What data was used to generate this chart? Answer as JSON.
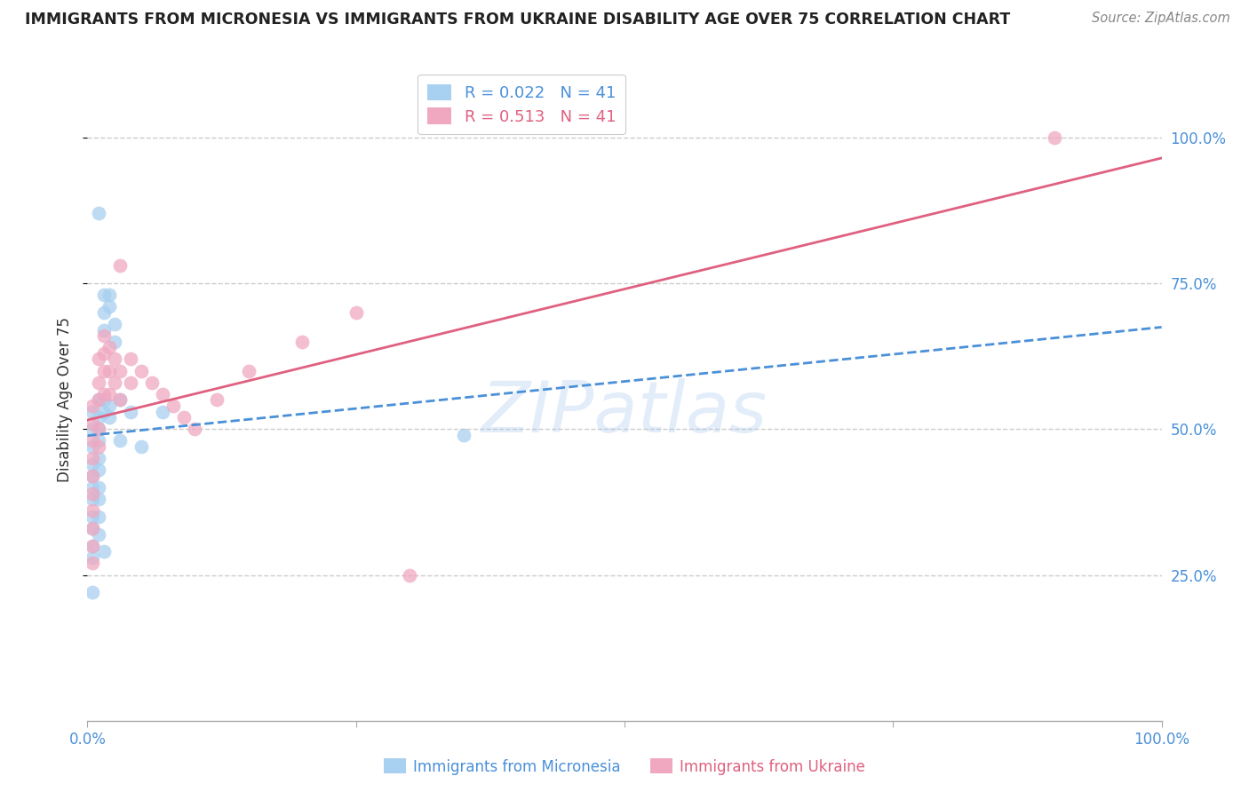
{
  "title": "IMMIGRANTS FROM MICRONESIA VS IMMIGRANTS FROM UKRAINE DISABILITY AGE OVER 75 CORRELATION CHART",
  "source": "Source: ZipAtlas.com",
  "ylabel": "Disability Age Over 75",
  "ylabel_right_labels": [
    "100.0%",
    "75.0%",
    "50.0%",
    "25.0%"
  ],
  "ylabel_right_values": [
    1.0,
    0.75,
    0.5,
    0.25
  ],
  "legend_top": [
    {
      "R": 0.022,
      "N": 41,
      "dot_color": "#a8d0f0"
    },
    {
      "R": 0.513,
      "N": 41,
      "dot_color": "#f0a8c0"
    }
  ],
  "legend_bottom": [
    {
      "label": "Immigrants from Micronesia",
      "dot_color": "#a8d0f0"
    },
    {
      "label": "Immigrants from Ukraine",
      "dot_color": "#f0a8c0"
    }
  ],
  "micronesia_x": [
    0.005,
    0.005,
    0.005,
    0.005,
    0.005,
    0.005,
    0.005,
    0.005,
    0.005,
    0.005,
    0.01,
    0.01,
    0.01,
    0.01,
    0.01,
    0.01,
    0.01,
    0.01,
    0.01,
    0.015,
    0.015,
    0.015,
    0.015,
    0.015,
    0.02,
    0.02,
    0.02,
    0.02,
    0.025,
    0.025,
    0.03,
    0.03,
    0.04,
    0.05,
    0.07,
    0.35,
    0.005,
    0.005,
    0.01,
    0.01,
    0.015
  ],
  "micronesia_y": [
    0.53,
    0.5,
    0.47,
    0.44,
    0.42,
    0.4,
    0.38,
    0.35,
    0.33,
    0.3,
    0.87,
    0.55,
    0.52,
    0.5,
    0.48,
    0.45,
    0.43,
    0.4,
    0.38,
    0.73,
    0.7,
    0.67,
    0.55,
    0.53,
    0.73,
    0.71,
    0.54,
    0.52,
    0.68,
    0.65,
    0.55,
    0.48,
    0.53,
    0.47,
    0.53,
    0.49,
    0.28,
    0.22,
    0.35,
    0.32,
    0.29
  ],
  "ukraine_x": [
    0.005,
    0.005,
    0.005,
    0.005,
    0.005,
    0.005,
    0.005,
    0.005,
    0.005,
    0.005,
    0.01,
    0.01,
    0.01,
    0.01,
    0.01,
    0.015,
    0.015,
    0.015,
    0.015,
    0.02,
    0.02,
    0.02,
    0.025,
    0.025,
    0.03,
    0.03,
    0.03,
    0.04,
    0.04,
    0.05,
    0.06,
    0.07,
    0.08,
    0.09,
    0.1,
    0.12,
    0.15,
    0.2,
    0.25,
    0.3,
    0.9
  ],
  "ukraine_y": [
    0.54,
    0.51,
    0.48,
    0.45,
    0.42,
    0.39,
    0.36,
    0.33,
    0.3,
    0.27,
    0.62,
    0.58,
    0.55,
    0.5,
    0.47,
    0.66,
    0.63,
    0.6,
    0.56,
    0.64,
    0.6,
    0.56,
    0.62,
    0.58,
    0.78,
    0.6,
    0.55,
    0.62,
    0.58,
    0.6,
    0.58,
    0.56,
    0.54,
    0.52,
    0.5,
    0.55,
    0.6,
    0.65,
    0.7,
    0.25,
    1.0
  ],
  "micronesia_line_color": "#4a90d9",
  "ukraine_line_color": "#e06080",
  "micronesia_dot_color": "#a8d0f0",
  "ukraine_dot_color": "#f0a8c0",
  "xlim": [
    0.0,
    1.0
  ],
  "ylim": [
    0.0,
    1.1
  ],
  "background_color": "#ffffff",
  "grid_color": "#cccccc",
  "watermark_text": "ZIPatlas",
  "watermark_color": "#a8c8f0"
}
